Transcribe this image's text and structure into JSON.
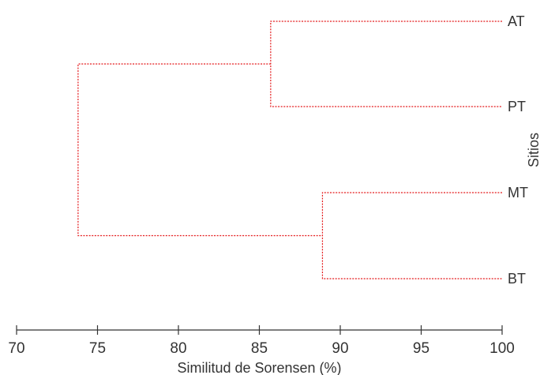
{
  "chart_data": {
    "type": "dendrogram",
    "orientation": "horizontal",
    "xlabel": "Similitud de Sorensen (%)",
    "ylabel": "Sitios",
    "xlim": [
      70,
      100
    ],
    "xticks": [
      70,
      75,
      80,
      85,
      90,
      95,
      100
    ],
    "leaves": [
      "AT",
      "PT",
      "MT",
      "BT"
    ],
    "merges": [
      {
        "left": "AT",
        "right": "PT",
        "similarity": 85.7
      },
      {
        "left": "MT",
        "right": "BT",
        "similarity": 88.9
      },
      {
        "left": "AT-PT",
        "right": "MT-BT",
        "similarity": 73.8
      }
    ],
    "line_color": "#e41a1c",
    "line_style": "dotted"
  }
}
